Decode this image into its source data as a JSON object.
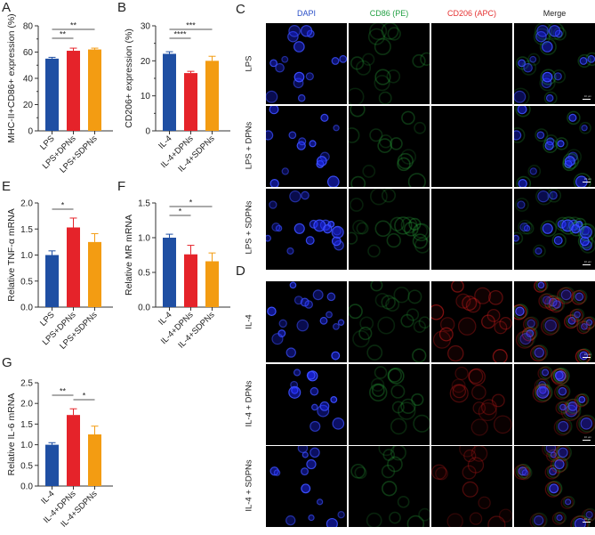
{
  "panels": {
    "A": "A",
    "B": "B",
    "C": "C",
    "D": "D",
    "E": "E",
    "F": "F",
    "G": "G"
  },
  "colors": {
    "blue": "#1f4fa3",
    "red": "#e5232a",
    "orange": "#f39c12",
    "dapi": "#2233ff",
    "cd86": "#1f9e3a",
    "cd206": "#e02020"
  },
  "chart_data": [
    {
      "id": "A",
      "type": "bar",
      "title": "",
      "ylabel": "MHC-II+CD86+ expression (%)",
      "xlabel": "",
      "categories": [
        "LPS",
        "LPS+DPNs",
        "LPS+SDPNs"
      ],
      "values": [
        55,
        61,
        62
      ],
      "errors": [
        1,
        2,
        1
      ],
      "ylim": [
        0,
        80
      ],
      "yticks": [
        "0",
        "20",
        "40",
        "60",
        "80"
      ],
      "significance": [
        {
          "from": 0,
          "to": 1,
          "label": "**"
        },
        {
          "from": 0,
          "to": 2,
          "label": "**"
        }
      ],
      "grid": false
    },
    {
      "id": "B",
      "type": "bar",
      "title": "",
      "ylabel": "CD206+ expression (%)",
      "xlabel": "",
      "categories": [
        "IL-4",
        "IL-4+DPNs",
        "IL-4+SDPNs"
      ],
      "values": [
        22,
        16.5,
        20
      ],
      "errors": [
        0.6,
        0.5,
        1.3
      ],
      "ylim": [
        0,
        30
      ],
      "yticks": [
        "0",
        "10",
        "20",
        "30"
      ],
      "significance": [
        {
          "from": 0,
          "to": 1,
          "label": "****"
        },
        {
          "from": 0,
          "to": 2,
          "label": "***"
        }
      ],
      "grid": false
    },
    {
      "id": "E",
      "type": "bar",
      "title": "",
      "ylabel": "Relative TNF-α mRNA",
      "xlabel": "",
      "categories": [
        "LPS",
        "LPS+DPNs",
        "LPS+SDPNs"
      ],
      "values": [
        1.0,
        1.53,
        1.25
      ],
      "errors": [
        0.08,
        0.18,
        0.16
      ],
      "ylim": [
        0,
        2.0
      ],
      "yticks": [
        "0.0",
        "0.5",
        "1.0",
        "1.5",
        "2.0"
      ],
      "significance": [
        {
          "from": 0,
          "to": 1,
          "label": "*"
        }
      ],
      "grid": false
    },
    {
      "id": "F",
      "type": "bar",
      "title": "",
      "ylabel": "Relative MR mRNA",
      "xlabel": "",
      "categories": [
        "IL-4",
        "IL-4+DPNs",
        "IL-4+SDPNs"
      ],
      "values": [
        1.0,
        0.76,
        0.66
      ],
      "errors": [
        0.05,
        0.13,
        0.12
      ],
      "ylim": [
        0,
        1.5
      ],
      "yticks": [
        "0.0",
        "0.5",
        "1.0",
        "1.5"
      ],
      "significance": [
        {
          "from": 0,
          "to": 1,
          "label": "*"
        },
        {
          "from": 0,
          "to": 2,
          "label": "*"
        }
      ],
      "grid": false
    },
    {
      "id": "G",
      "type": "bar",
      "title": "",
      "ylabel": "Relative IL-6 mRNA",
      "xlabel": "",
      "categories": [
        "IL-4",
        "IL-4+DPNs",
        "IL-4+SDPNs"
      ],
      "values": [
        1.0,
        1.72,
        1.25
      ],
      "errors": [
        0.05,
        0.15,
        0.2
      ],
      "ylim": [
        0,
        2.5
      ],
      "yticks": [
        "0.0",
        "0.5",
        "1.0",
        "1.5",
        "2.0",
        "2.5"
      ],
      "significance": [
        {
          "from": 0,
          "to": 1,
          "label": "**"
        },
        {
          "from": 1,
          "to": 2,
          "label": "*"
        }
      ],
      "grid": false
    }
  ],
  "microscopy": {
    "columns": [
      "DAPI",
      "CD86 (PE)",
      "CD206 (APC)",
      "Merge"
    ],
    "panelC_rows": [
      "LPS",
      "LPS + DPNs",
      "LPS + SDPNs"
    ],
    "panelD_rows": [
      "IL-4",
      "IL-4 + DPNs",
      "IL-4 + SDPNs"
    ],
    "scale_bar": "10 μm"
  }
}
